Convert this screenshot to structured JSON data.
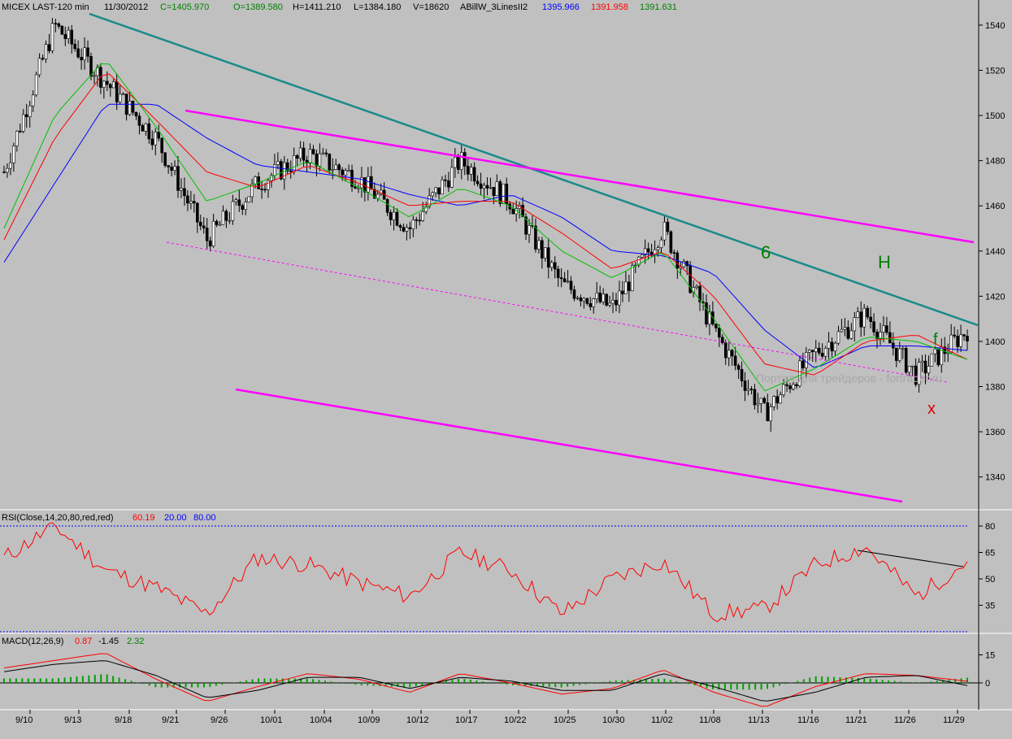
{
  "header": {
    "symbol": "MICEX LAST-120 min",
    "date": "11/30/2012",
    "close": "C=1405.970",
    "open": "O=1389.580",
    "high": "H=1411.210",
    "low": "L=1384.180",
    "volume": "V=18620",
    "indicator": "ABillW_3LinesII2",
    "line_blue": "1395.966",
    "line_red": "1391.958",
    "line_green": "1391.631"
  },
  "watermark": "Портал для трейдеров - fortrader.ru",
  "annotations": {
    "six": "6",
    "h": "H",
    "f": "f",
    "x": "x"
  },
  "rsi": {
    "label": "RSI(Close,14,20,80,red,red)",
    "value": "60.19",
    "low_level": "20.00",
    "high_level": "80.00",
    "ticks": [
      "80",
      "65",
      "50",
      "35"
    ]
  },
  "macd": {
    "label": "MACD(12,26,9)",
    "v1": "0.87",
    "v2": "-1.45",
    "v3": "2.32",
    "ticks": [
      "15",
      "0",
      "-15"
    ]
  },
  "x_axis": {
    "labels": [
      "9/10",
      "9/13",
      "9/18",
      "9/21",
      "9/26",
      "10/01",
      "10/04",
      "10/09",
      "10/12",
      "10/17",
      "10/22",
      "10/25",
      "10/30",
      "11/02",
      "11/08",
      "11/13",
      "11/16",
      "11/21",
      "11/26",
      "11/29"
    ]
  },
  "colors": {
    "background": "#c0c0c0",
    "trendline_teal": "#1a8a8a",
    "channel_magenta": "#ff00ff",
    "blue": "#0000ff",
    "red": "#ff0000",
    "green": "#00c000",
    "candles": "#000000"
  },
  "chart_data": {
    "type": "line",
    "title": "MICEX LAST-120 min",
    "price_axis": {
      "ticks": [
        1540,
        1520,
        1500,
        1480,
        1460,
        1440,
        1420,
        1400,
        1380,
        1360,
        1340
      ],
      "ylim": [
        1328,
        1545
      ]
    },
    "x": [
      "9/10",
      "9/13",
      "9/18",
      "9/21",
      "9/26",
      "10/01",
      "10/04",
      "10/09",
      "10/12",
      "10/17",
      "10/22",
      "10/25",
      "10/30",
      "11/02",
      "11/08",
      "11/13",
      "11/16",
      "11/21",
      "11/26",
      "11/29"
    ],
    "series": [
      {
        "name": "close",
        "values": [
          1475,
          1540,
          1515,
          1490,
          1445,
          1470,
          1483,
          1472,
          1450,
          1480,
          1462,
          1425,
          1415,
          1450,
          1405,
          1368,
          1395,
          1412,
          1385,
          1405
        ]
      },
      {
        "name": "ABillW blue",
        "values": [
          1435,
          1470,
          1505,
          1505,
          1490,
          1478,
          1475,
          1472,
          1465,
          1460,
          1465,
          1455,
          1440,
          1438,
          1430,
          1405,
          1388,
          1398,
          1398,
          1396
        ]
      },
      {
        "name": "ABillW red",
        "values": [
          1445,
          1490,
          1520,
          1498,
          1475,
          1468,
          1478,
          1470,
          1460,
          1462,
          1462,
          1448,
          1432,
          1440,
          1420,
          1390,
          1385,
          1400,
          1403,
          1392
        ]
      },
      {
        "name": "ABillW green",
        "values": [
          1450,
          1500,
          1525,
          1495,
          1462,
          1470,
          1480,
          1468,
          1455,
          1468,
          1460,
          1440,
          1428,
          1440,
          1410,
          1378,
          1388,
          1402,
          1400,
          1392
        ]
      }
    ],
    "rsi": {
      "ylim": [
        20,
        85
      ],
      "values": [
        62,
        80,
        55,
        45,
        30,
        62,
        58,
        48,
        40,
        65,
        55,
        30,
        50,
        60,
        30,
        33,
        58,
        68,
        40,
        60
      ]
    },
    "macd": {
      "ylim": [
        -15,
        20
      ],
      "macd": [
        8,
        12,
        16,
        2,
        -10,
        -2,
        5,
        2,
        -5,
        5,
        0,
        -6,
        -3,
        7,
        -5,
        -13,
        -2,
        5,
        4,
        0.87
      ],
      "signal": [
        6,
        10,
        12,
        4,
        -8,
        -4,
        3,
        3,
        -3,
        3,
        1,
        -4,
        -4,
        5,
        -2,
        -10,
        -5,
        3,
        4,
        -1.45
      ]
    }
  }
}
